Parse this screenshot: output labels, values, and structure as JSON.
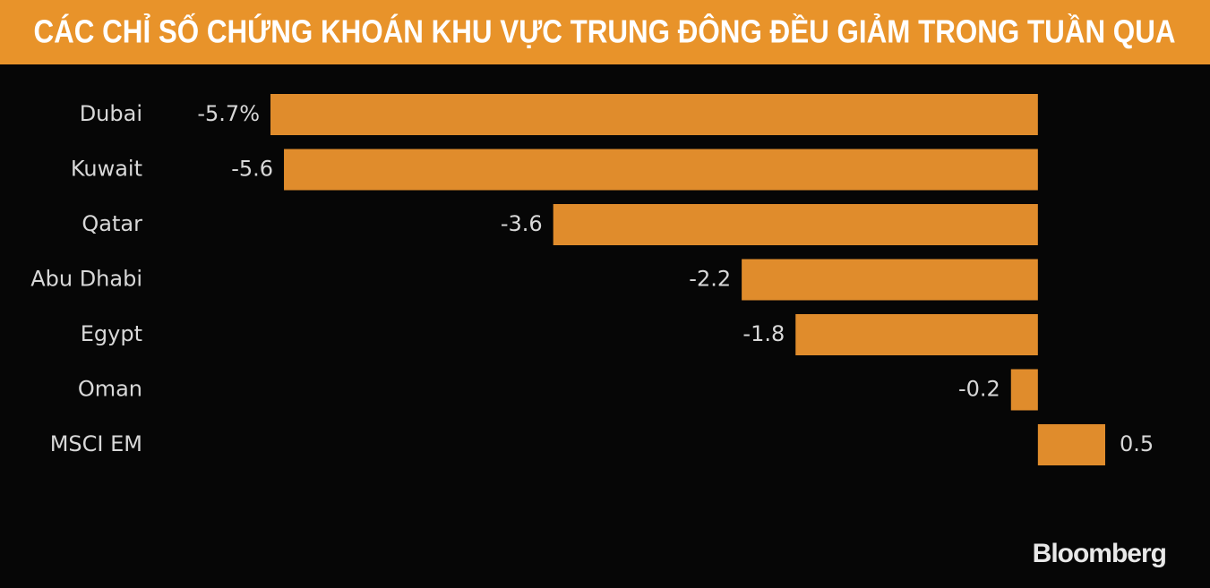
{
  "chart_data": {
    "type": "bar",
    "orientation": "horizontal",
    "title": "CÁC CHỈ SỐ CHỨNG KHOÁN KHU VỰC TRUNG ĐÔNG ĐỀU GIẢM TRONG TUẦN QUA",
    "categories": [
      "Dubai",
      "Kuwait",
      "Qatar",
      "Abu Dhabi",
      "Egypt",
      "Oman",
      "MSCI EM"
    ],
    "values": [
      -5.7,
      -5.6,
      -3.6,
      -2.2,
      -1.8,
      -0.2,
      0.5
    ],
    "value_labels": [
      "-5.7%",
      "-5.6",
      "-3.6",
      "-2.2",
      "-1.8",
      "-0.2",
      "0.5"
    ],
    "color": "#e08c2c",
    "source": "Bloomberg"
  }
}
